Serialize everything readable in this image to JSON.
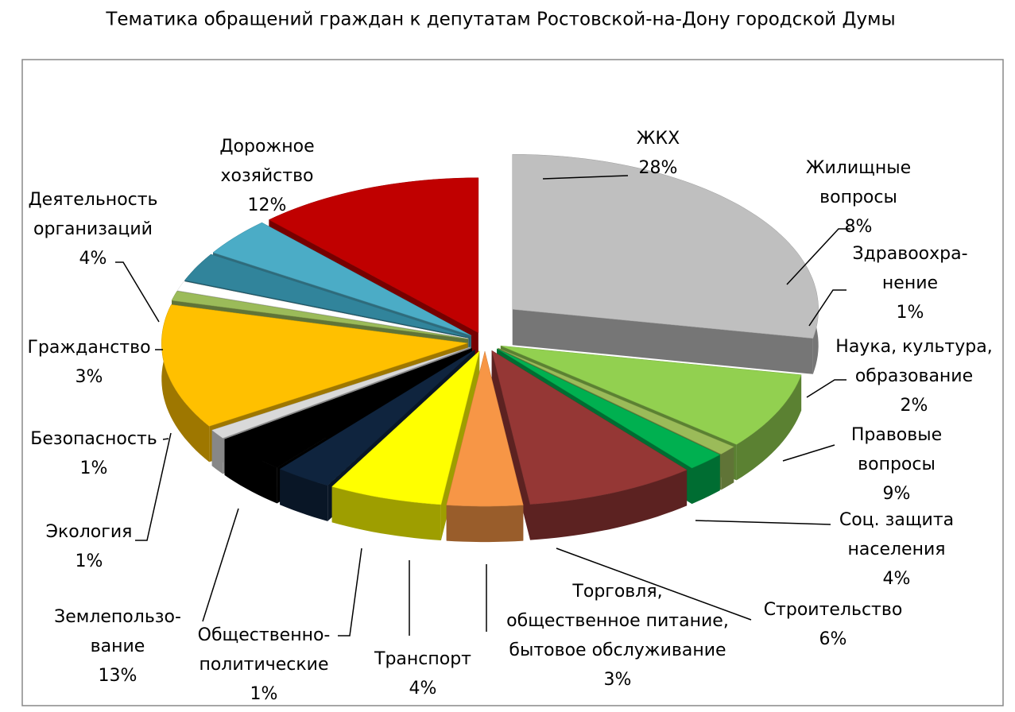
{
  "chart_data": {
    "type": "pie3d",
    "title": "Тематика обращений граждан к депутатам Ростовской-на-Дону городской Думы",
    "categories": [
      "ЖКХ",
      "Жилищные\nвопросы",
      "Здравоохра-\nнение",
      "Наука, культура,\nобразование",
      "Правовые\nвопросы",
      "Соц. защита\nнаселения",
      "Строительство",
      "Торговля,\nобщественное питание,\nбытовое обслуживание",
      "Транспорт",
      "Общественно-\nполитические",
      "Землепользо-\nвание",
      "Экология",
      "Безопасность",
      "Гражданство",
      "Деятельность\nорганизаций",
      "Дорожное\nхозяйство"
    ],
    "values": [
      28,
      8,
      1,
      2,
      9,
      4,
      6,
      3,
      4,
      1,
      13,
      1,
      1,
      3,
      4,
      12
    ],
    "value_labels": [
      "28%",
      "8%",
      "1%",
      "2%",
      "9%",
      "4%",
      "6%",
      "3%",
      "4%",
      "1%",
      "13%",
      "1%",
      "1%",
      "3%",
      "4%",
      "12%"
    ],
    "colors": [
      "#bfbfbf",
      "#92d050",
      "#9bbb59",
      "#00b050",
      "#953735",
      "#f79646",
      "#ffff00",
      "#0f243e",
      "#000000",
      "#d9d9d9",
      "#ffc000",
      "#9bbb59",
      "#ffffff",
      "#31849b",
      "#4bacc6",
      "#c00000"
    ]
  }
}
